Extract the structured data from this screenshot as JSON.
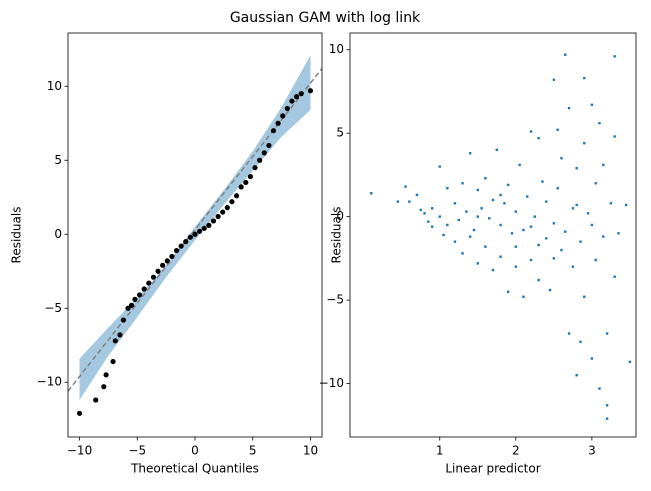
{
  "title": "Gaussian GAM with log link",
  "chart_data": [
    {
      "type": "scatter",
      "xlabel": "Theoretical Quantiles",
      "ylabel": "Residuals",
      "color": "#000000",
      "x": [
        -10,
        -8.6,
        -7.9,
        -7.7,
        -7.1,
        -6.9,
        -6.5,
        -6.2,
        -5.8,
        -5.5,
        -5.2,
        -4.8,
        -4.4,
        -4,
        -3.6,
        -3.2,
        -2.8,
        -2.4,
        -2,
        -1.6,
        -1.2,
        -0.8,
        -0.4,
        0,
        0.4,
        0.8,
        1.2,
        1.6,
        2,
        2.4,
        2.8,
        3.2,
        3.6,
        4,
        4.4,
        4.8,
        5.2,
        5.6,
        6,
        6.4,
        6.8,
        7.2,
        7.6,
        8,
        8.4,
        8.8,
        9.2,
        10
      ],
      "values": [
        -12.1,
        -11.2,
        -10.3,
        -9.5,
        -8.6,
        -7.2,
        -6.8,
        -5.8,
        -5.0,
        -4.8,
        -4.4,
        -4.1,
        -3.7,
        -3.3,
        -2.9,
        -2.5,
        -2.1,
        -1.8,
        -1.5,
        -1.1,
        -0.8,
        -0.5,
        -0.2,
        0,
        0.2,
        0.4,
        0.6,
        0.9,
        1.2,
        1.5,
        1.8,
        2.2,
        2.6,
        3.2,
        3.5,
        3.9,
        4.5,
        5.0,
        5.5,
        6.0,
        7.0,
        7.5,
        8.0,
        8.5,
        9.0,
        9.3,
        9.5,
        9.7
      ],
      "reference_line": {
        "x": [
          -11,
          11
        ],
        "values": [
          -10.6,
          11.2
        ],
        "color": "#808080",
        "dashed": true
      },
      "band": {
        "x": [
          -10,
          -7.5,
          -5,
          -2.5,
          0,
          2.5,
          5,
          7.5,
          10
        ],
        "lower": [
          -11.2,
          -8.2,
          -5.6,
          -2.9,
          -0.4,
          2.0,
          4.3,
          6.6,
          8.4
        ],
        "upper": [
          -8.4,
          -6.3,
          -4.3,
          -2.1,
          0.5,
          3.0,
          5.6,
          8.6,
          12.1
        ],
        "color": "#a5c8e1"
      },
      "xlim": [
        -11,
        11
      ],
      "xticks": [
        {
          "value": -10,
          "label": "−10"
        },
        {
          "value": -5,
          "label": "−5"
        },
        0,
        5,
        10
      ],
      "ylim": [
        -13.7,
        13.6
      ],
      "yticks": [
        {
          "value": -10,
          "label": "−10"
        },
        {
          "value": -5,
          "label": "−5"
        },
        0,
        5,
        10
      ]
    },
    {
      "type": "scatter",
      "xlabel": "Linear predictor",
      "ylabel": "Residuals",
      "color": "#1f77b4",
      "x": [
        0.1,
        0.45,
        0.55,
        0.6,
        0.7,
        0.75,
        0.8,
        0.85,
        0.9,
        0.9,
        1.0,
        1.0,
        1.05,
        1.1,
        1.1,
        1.2,
        1.2,
        1.25,
        1.3,
        1.3,
        1.35,
        1.4,
        1.4,
        1.45,
        1.5,
        1.5,
        1.55,
        1.6,
        1.6,
        1.65,
        1.7,
        1.7,
        1.75,
        1.8,
        1.8,
        1.85,
        1.9,
        1.9,
        1.95,
        2.0,
        2.0,
        2.05,
        2.1,
        2.1,
        2.15,
        2.2,
        2.2,
        2.25,
        2.3,
        2.3,
        2.35,
        2.4,
        2.4,
        2.45,
        2.5,
        2.5,
        2.55,
        2.55,
        2.6,
        2.6,
        2.65,
        2.65,
        2.7,
        2.7,
        2.75,
        2.75,
        2.8,
        2.8,
        2.85,
        2.85,
        2.9,
        2.9,
        2.9,
        2.95,
        3.0,
        3.0,
        3.0,
        3.05,
        3.05,
        3.1,
        3.1,
        3.15,
        3.15,
        3.2,
        3.2,
        3.2,
        3.25,
        3.3,
        3.3,
        3.3,
        3.35,
        3.45,
        3.5,
        2.0,
        1.5,
        2.2,
        2.8,
        2.5,
        1.8,
        2.3
      ],
      "values": [
        1.4,
        0.9,
        1.8,
        0.9,
        1.3,
        0.4,
        0.2,
        -0.3,
        0.5,
        -0.6,
        0.0,
        3.0,
        -1.1,
        1.7,
        -0.5,
        0.8,
        -1.5,
        -0.2,
        -2.2,
        2.0,
        0.3,
        -1.2,
        3.8,
        -0.8,
        1.6,
        -2.8,
        0.5,
        -1.8,
        2.3,
        -0.1,
        -3.2,
        1.0,
        4.0,
        -0.5,
        -2.4,
        0.8,
        -4.5,
        1.9,
        -1.0,
        -1.8,
        0.3,
        3.1,
        -4.8,
        -0.8,
        1.2,
        5.1,
        -2.6,
        0.0,
        4.7,
        -3.8,
        2.1,
        -1.3,
        0.9,
        -4.4,
        8.2,
        -0.4,
        5.2,
        1.7,
        -2.0,
        3.5,
        9.7,
        -0.9,
        -7.0,
        6.5,
        0.5,
        -3.0,
        -9.5,
        2.9,
        -1.5,
        -7.5,
        8.3,
        4.4,
        -4.8,
        0.2,
        -8.5,
        -0.5,
        6.7,
        2.0,
        -2.6,
        5.6,
        -10.3,
        -1.2,
        3.1,
        -12.1,
        -11.3,
        -7.0,
        0.8,
        9.6,
        4.8,
        -3.6,
        -1.0,
        0.7,
        -8.7,
        -3.0,
        0.0,
        -0.6,
        0.7,
        -2.5,
        1.3,
        -1.7
      ],
      "xlim": [
        -0.18,
        3.58
      ],
      "xticks": [
        1,
        2,
        3
      ],
      "ylim": [
        -13.2,
        11
      ],
      "yticks": [
        {
          "value": -10,
          "label": "−10"
        },
        {
          "value": -5,
          "label": "−5"
        },
        0,
        5,
        10
      ]
    }
  ]
}
